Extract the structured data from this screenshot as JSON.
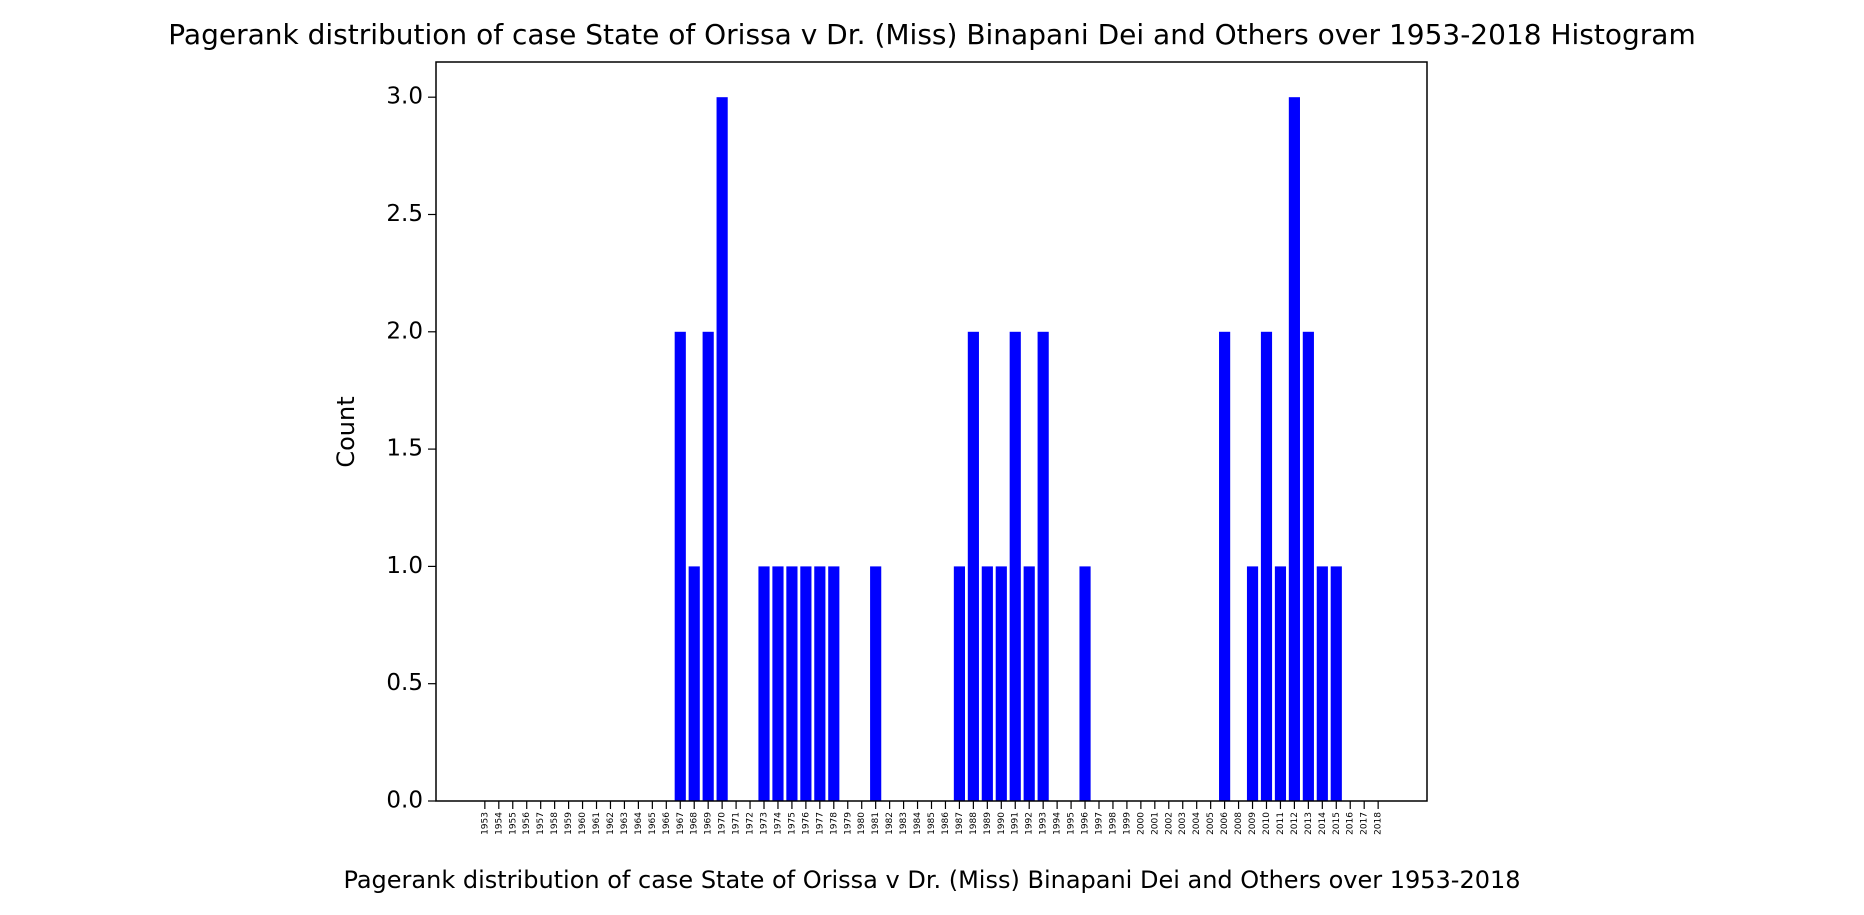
{
  "chart_data": {
    "type": "bar",
    "title": "Pagerank distribution of case State of Orissa v Dr. (Miss) Binapani Dei and Others over 1953-2018 Histogram",
    "x_label": "Pagerank distribution of case State of Orissa v Dr. (Miss) Binapani Dei and Others over 1953-2018",
    "y_label": "Count",
    "categories": [
      "1953",
      "1954",
      "1955",
      "1956",
      "1957",
      "1958",
      "1959",
      "1960",
      "1961",
      "1962",
      "1963",
      "1964",
      "1965",
      "1966",
      "1967",
      "1968",
      "1969",
      "1970",
      "1971",
      "1972",
      "1973",
      "1974",
      "1975",
      "1976",
      "1977",
      "1978",
      "1979",
      "1980",
      "1981",
      "1982",
      "1983",
      "1984",
      "1985",
      "1986",
      "1987",
      "1988",
      "1989",
      "1990",
      "1991",
      "1992",
      "1993",
      "1994",
      "1995",
      "1996",
      "1997",
      "1998",
      "1999",
      "2000",
      "2001",
      "2002",
      "2003",
      "2004",
      "2005",
      "2006",
      "2008",
      "2009",
      "2010",
      "2011",
      "2012",
      "2013",
      "2014",
      "2015",
      "2016",
      "2017",
      "2018"
    ],
    "values": [
      0,
      0,
      0,
      0,
      0,
      0,
      0,
      0,
      0,
      0,
      0,
      0,
      0,
      0,
      2,
      1,
      2,
      3,
      0,
      0,
      1,
      1,
      1,
      1,
      1,
      1,
      0,
      0,
      1,
      0,
      0,
      0,
      0,
      0,
      1,
      2,
      1,
      1,
      2,
      1,
      2,
      0,
      0,
      1,
      0,
      0,
      0,
      0,
      0,
      0,
      0,
      0,
      0,
      2,
      0,
      1,
      2,
      1,
      3,
      2,
      1,
      1,
      0,
      0,
      0
    ],
    "color": "#0000ff",
    "ylim": [
      0,
      3.15
    ],
    "yticks": [
      {
        "value": 0,
        "label": "0.0"
      },
      {
        "value": 0.5,
        "label": "0.5"
      },
      {
        "value": 1,
        "label": "1.0"
      },
      {
        "value": 1.5,
        "label": "1.5"
      },
      {
        "value": 2,
        "label": "2.0"
      },
      {
        "value": 2.5,
        "label": "2.5"
      },
      {
        "value": 3,
        "label": "3.0"
      }
    ],
    "grid": false
  }
}
